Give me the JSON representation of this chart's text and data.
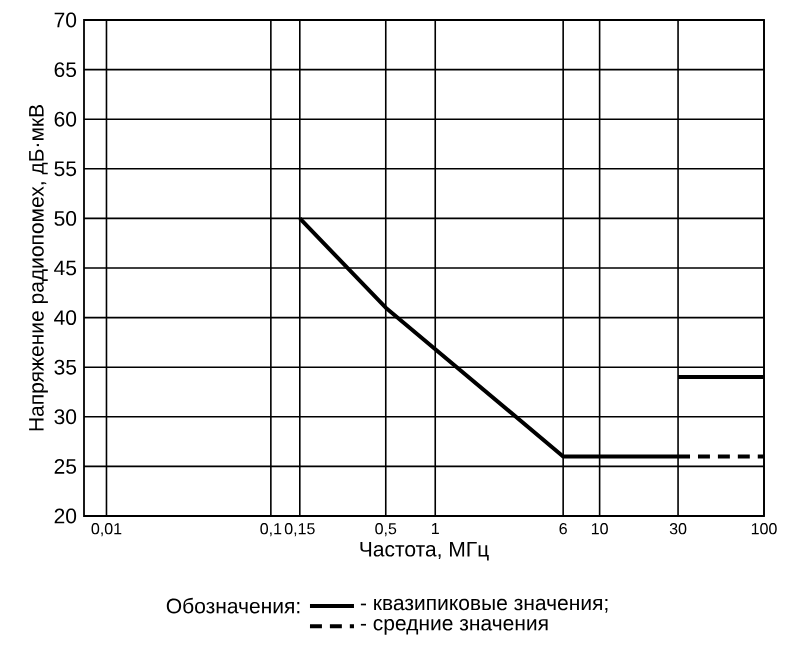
{
  "chart_data": {
    "type": "line",
    "xlabel": "Частота, МГц",
    "ylabel": "Напряжение радиопомех, дБ·мкВ",
    "legend_title": "Обозначения:",
    "log": "x",
    "grid": true,
    "legend": "bottom",
    "xlim": [
      0.0073,
      100
    ],
    "ylim": [
      20,
      70
    ],
    "xticks": [
      {
        "value": 0.01,
        "label": "0,01"
      },
      {
        "value": 0.1,
        "label": "0,1"
      },
      {
        "value": 0.15,
        "label": "0,15"
      },
      {
        "value": 0.5,
        "label": "0,5"
      },
      1,
      6,
      10,
      30,
      100
    ],
    "yticks": [
      20,
      25,
      30,
      35,
      40,
      45,
      50,
      55,
      60,
      65,
      70
    ],
    "series": [
      {
        "name": "- квазипиковые значения;",
        "color": "#000000",
        "line_style": "solid",
        "x": [
          0.15,
          0.5,
          6,
          30
        ],
        "values": [
          50,
          41,
          26,
          26
        ]
      },
      {
        "name": "- средние значения",
        "color": "#000000",
        "line_style": "dashed",
        "x": [
          30,
          100
        ],
        "values": [
          26,
          26
        ]
      },
      {
        "color": "#000000",
        "line_style": "solid",
        "x": [
          30,
          100
        ],
        "values": [
          34,
          34
        ]
      }
    ]
  }
}
